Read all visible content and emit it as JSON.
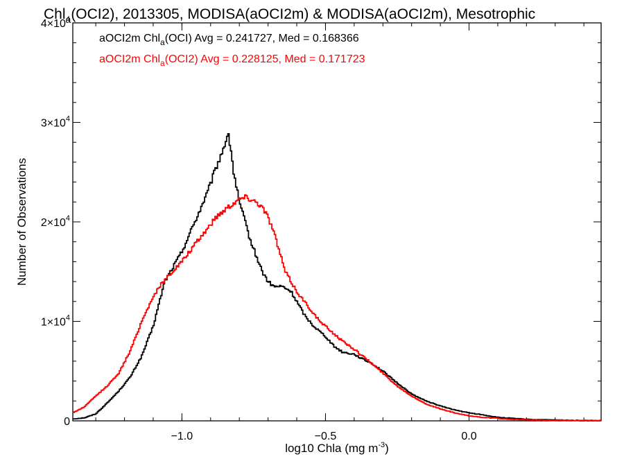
{
  "chart_data": {
    "type": "histogram-step",
    "title": {
      "pre": "Chl",
      "sub": "a",
      "post": "(OCI2), 2013305, MODISA(aOCI2m) & MODISA(aOCI2m), Mesotrophic"
    },
    "xlabel": {
      "pre": "log10 Chla (mg m",
      "sup": "-3",
      "post": ")"
    },
    "ylabel": "Number of Observations",
    "xlim": [
      -1.38,
      0.46
    ],
    "ylim": [
      0,
      40000
    ],
    "x_ticks": [
      {
        "value": -1.0,
        "label": "−1.0"
      },
      {
        "value": -0.5,
        "label": "−0.5"
      },
      {
        "value": 0.0,
        "label": "0.0"
      }
    ],
    "x_minor_step": 0.1,
    "y_ticks": [
      {
        "value": 0,
        "label": "0",
        "exp": ""
      },
      {
        "value": 10000,
        "label": "1×10",
        "exp": "4"
      },
      {
        "value": 20000,
        "label": "2×10",
        "exp": "4"
      },
      {
        "value": 30000,
        "label": "3×10",
        "exp": "4"
      },
      {
        "value": 40000,
        "label": "4×10",
        "exp": "4"
      }
    ],
    "y_minor_step": 2000,
    "legend_placement": "top-left",
    "series": [
      {
        "name_pre": "aOCI2m Chl",
        "name_sub": "a",
        "name_post": "(OCI) Avg = 0.241727, Med = 0.168366",
        "color": "#000000",
        "x": [
          -1.38,
          -1.34,
          -1.3,
          -1.26,
          -1.22,
          -1.18,
          -1.14,
          -1.1,
          -1.06,
          -1.03,
          -1.0,
          -0.97,
          -0.94,
          -0.91,
          -0.88,
          -0.86,
          -0.84,
          -0.83,
          -0.82,
          -0.8,
          -0.78,
          -0.76,
          -0.74,
          -0.72,
          -0.7,
          -0.68,
          -0.65,
          -0.62,
          -0.6,
          -0.57,
          -0.54,
          -0.5,
          -0.47,
          -0.44,
          -0.4,
          -0.37,
          -0.34,
          -0.3,
          -0.25,
          -0.2,
          -0.15,
          -0.1,
          -0.05,
          0.0,
          0.05,
          0.1,
          0.15,
          0.2,
          0.3,
          0.4,
          0.46
        ],
        "y": [
          200,
          300,
          700,
          1800,
          3000,
          4400,
          6500,
          9500,
          14000,
          15500,
          17000,
          19000,
          21000,
          23000,
          25500,
          27000,
          28800,
          27500,
          25000,
          22000,
          20000,
          18000,
          16500,
          15000,
          14000,
          13500,
          13500,
          13000,
          12000,
          10500,
          9500,
          8500,
          7500,
          6900,
          6700,
          6200,
          5800,
          5000,
          3800,
          2700,
          2000,
          1500,
          1100,
          800,
          600,
          350,
          250,
          150,
          80,
          30,
          20
        ]
      },
      {
        "name_pre": "aOCI2m Chl",
        "name_sub": "a",
        "name_post": "(OCI2) Avg = 0.228125, Med = 0.171723",
        "color": "#ff0000",
        "x": [
          -1.38,
          -1.34,
          -1.3,
          -1.26,
          -1.22,
          -1.18,
          -1.14,
          -1.1,
          -1.07,
          -1.04,
          -1.0,
          -0.96,
          -0.92,
          -0.88,
          -0.84,
          -0.8,
          -0.78,
          -0.76,
          -0.74,
          -0.72,
          -0.7,
          -0.68,
          -0.66,
          -0.64,
          -0.6,
          -0.56,
          -0.52,
          -0.48,
          -0.44,
          -0.4,
          -0.37,
          -0.34,
          -0.3,
          -0.25,
          -0.2,
          -0.15,
          -0.1,
          -0.05,
          0.0,
          0.05,
          0.1,
          0.15,
          0.2,
          0.3,
          0.4,
          0.46
        ],
        "y": [
          800,
          1400,
          2500,
          3500,
          4800,
          7000,
          10000,
          12500,
          13800,
          14800,
          16000,
          17500,
          19000,
          20500,
          21500,
          22300,
          22500,
          22300,
          22000,
          21500,
          20500,
          19000,
          17000,
          15000,
          13000,
          11500,
          10000,
          9000,
          8000,
          7200,
          6500,
          5800,
          4800,
          3500,
          2500,
          1700,
          1200,
          800,
          500,
          350,
          250,
          150,
          100,
          50,
          20,
          10
        ]
      }
    ]
  }
}
